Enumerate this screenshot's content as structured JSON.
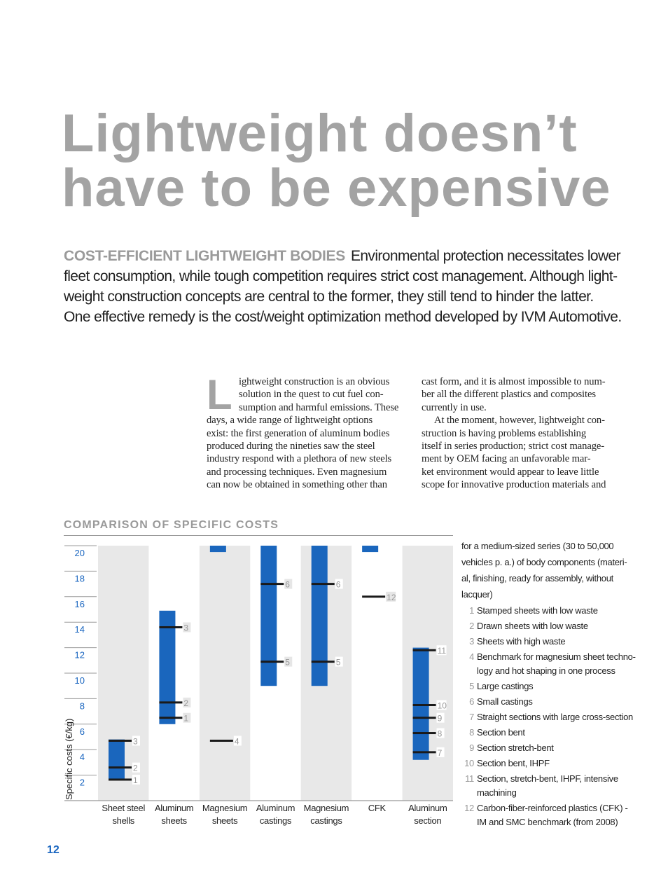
{
  "title": {
    "line1": "Lightweight doesn’t",
    "line2": "have to be expensive"
  },
  "intro": {
    "lead": "COST-EFFICIENT LIGHTWEIGHT BODIES",
    "lines": [
      "Environmental protection necessitates lower",
      "fleet consumption, while tough competition requires strict cost management. Although light-",
      "weight construction concepts are central to the former, they still tend to hinder the latter.",
      "One effective remedy is the cost/weight optimization method developed by IVM Automotive."
    ]
  },
  "body": {
    "dropcap": "L",
    "col1": [
      "ightweight construction is an obvious",
      "solution in the quest to cut fuel con-",
      "sumption and harmful emissions. These",
      "days, a wide range of lightweight options",
      "exist: the first generation of aluminum bodies",
      "produced during the nineties saw the steel",
      "industry respond with a plethora of new steels",
      "and processing techniques. Even magnesium",
      "can now be obtained in something other than"
    ],
    "col2": [
      "cast form, and it is almost impossible to num-",
      "ber all the different plastics and composites",
      "currently in use.",
      "At the moment, however, lightweight con-",
      "struction is having problems establishing",
      "itself in series production; strict cost manage-",
      "ment by OEM facing an unfavorable mar-",
      "ket environment would appear to leave little",
      "scope for innovative production materials and"
    ]
  },
  "chart_heading": "COMPARISON OF SPECIFIC COSTS",
  "chart_data": {
    "type": "range-bar",
    "ylabel": "Specific costs (€/kg)",
    "ylim": [
      0,
      20
    ],
    "yticks": [
      2,
      4,
      6,
      8,
      10,
      12,
      14,
      16,
      18,
      20
    ],
    "colors": {
      "bar": "#1a66bd",
      "marker": "#1a1a1a",
      "tick_label": "#1a66c0",
      "column_shade": "#e8e8e8"
    },
    "categories": [
      {
        "label": [
          "Sheet steel",
          "shells"
        ],
        "range": [
          1.65,
          4.8
        ],
        "markers": [
          {
            "id": "1",
            "value": 1.65
          },
          {
            "id": "2",
            "value": 2.6
          },
          {
            "id": "3",
            "value": 4.7
          }
        ]
      },
      {
        "label": [
          "Aluminum",
          "sheets"
        ],
        "range": [
          6.0,
          14.9
        ],
        "markers": [
          {
            "id": "1",
            "value": 6.5
          },
          {
            "id": "2",
            "value": 7.7
          },
          {
            "id": "3",
            "value": 13.6
          }
        ]
      },
      {
        "label": [
          "Magnesium",
          "sheets"
        ],
        "range": [
          19.5,
          20
        ],
        "clipped_top": true,
        "markers": [
          {
            "id": "4",
            "value": 4.7
          }
        ]
      },
      {
        "label": [
          "Aluminum",
          "castings"
        ],
        "range": [
          9.0,
          20
        ],
        "clipped_top": true,
        "markers": [
          {
            "id": "5",
            "value": 10.9
          },
          {
            "id": "6",
            "value": 17.0
          }
        ]
      },
      {
        "label": [
          "Magnesium",
          "castings"
        ],
        "range": [
          9.0,
          20
        ],
        "clipped_top": true,
        "markers": [
          {
            "id": "5",
            "value": 10.9
          },
          {
            "id": "6",
            "value": 17.0
          }
        ]
      },
      {
        "label": [
          "CFK",
          ""
        ],
        "range": [
          19.5,
          20
        ],
        "clipped_top": true,
        "markers": [
          {
            "id": "12",
            "value": 16.0
          }
        ]
      },
      {
        "label": [
          "Aluminum",
          "section"
        ],
        "range": [
          3.2,
          12.0
        ],
        "markers": [
          {
            "id": "7",
            "value": 3.8
          },
          {
            "id": "8",
            "value": 5.3
          },
          {
            "id": "9",
            "value": 6.5
          },
          {
            "id": "10",
            "value": 7.5
          },
          {
            "id": "11",
            "value": 11.8
          }
        ]
      }
    ]
  },
  "legend": {
    "intro": [
      "for a medium-sized series (30 to 50,000",
      "vehicles p. a.) of body components (materi-",
      "al, finishing, ready for assembly, without",
      "lacquer)"
    ],
    "items": [
      {
        "num": "1",
        "text": "Stamped sheets with low waste"
      },
      {
        "num": "2",
        "text": "Drawn sheets with low waste"
      },
      {
        "num": "3",
        "text": "Sheets with high waste"
      },
      {
        "num": "4",
        "text": "Benchmark for magnesium sheet techno-\nlogy and hot shaping in one process"
      },
      {
        "num": "5",
        "text": "Large castings"
      },
      {
        "num": "6",
        "text": "Small castings"
      },
      {
        "num": "7",
        "text": "Straight sections with large cross-section"
      },
      {
        "num": "8",
        "text": "Section bent"
      },
      {
        "num": "9",
        "text": "Section stretch-bent"
      },
      {
        "num": "10",
        "text": "Section bent, IHPF"
      },
      {
        "num": "11",
        "text": "Section, stretch-bent, IHPF, intensive\nmachining"
      },
      {
        "num": "12",
        "text": "Carbon-fiber-reinforced plastics (CFK) -\nIM and SMC benchmark (from 2008)"
      }
    ]
  },
  "page_number": "12"
}
